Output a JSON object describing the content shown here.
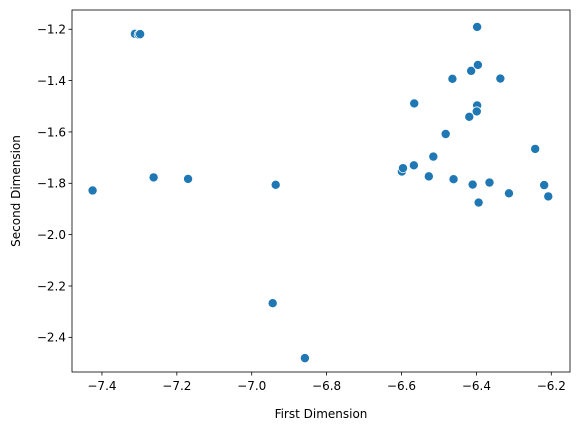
{
  "chart_data": {
    "type": "scatter",
    "title": "",
    "xlabel": "First Dimension",
    "ylabel": "Second Dimension",
    "xlim": [
      -7.48,
      -6.15
    ],
    "ylim": [
      -2.535,
      -1.125
    ],
    "xticks": [
      -7.4,
      -7.2,
      -7.0,
      -6.8,
      -6.6,
      -6.4,
      -6.2
    ],
    "xtick_labels": [
      "−7.4",
      "−7.2",
      "−7.0",
      "−6.8",
      "−6.6",
      "−6.4",
      "−6.2"
    ],
    "yticks": [
      -1.2,
      -1.4,
      -1.6,
      -1.8,
      -2.0,
      -2.2,
      -2.4
    ],
    "ytick_labels": [
      "−1.2",
      "−1.4",
      "−1.6",
      "−1.8",
      "−2.0",
      "−2.2",
      "−2.4"
    ],
    "grid": false,
    "legend": "none",
    "color": "#1f77b4",
    "series": [
      {
        "points": [
          {
            "x": -7.425,
            "y": -1.828
          },
          {
            "x": -7.312,
            "y": -1.218
          },
          {
            "x": -7.302,
            "y": -1.221
          },
          {
            "x": -7.298,
            "y": -1.219
          },
          {
            "x": -7.262,
            "y": -1.777
          },
          {
            "x": -7.17,
            "y": -1.783
          },
          {
            "x": -6.936,
            "y": -1.806
          },
          {
            "x": -6.944,
            "y": -2.267
          },
          {
            "x": -6.858,
            "y": -2.481
          },
          {
            "x": -6.599,
            "y": -1.754
          },
          {
            "x": -6.596,
            "y": -1.741
          },
          {
            "x": -6.567,
            "y": -1.73
          },
          {
            "x": -6.566,
            "y": -1.489
          },
          {
            "x": -6.527,
            "y": -1.773
          },
          {
            "x": -6.515,
            "y": -1.696
          },
          {
            "x": -6.482,
            "y": -1.608
          },
          {
            "x": -6.464,
            "y": -1.393
          },
          {
            "x": -6.461,
            "y": -1.784
          },
          {
            "x": -6.419,
            "y": -1.541
          },
          {
            "x": -6.414,
            "y": -1.362
          },
          {
            "x": -6.41,
            "y": -1.805
          },
          {
            "x": -6.398,
            "y": -1.191
          },
          {
            "x": -6.396,
            "y": -1.339
          },
          {
            "x": -6.398,
            "y": -1.497
          },
          {
            "x": -6.399,
            "y": -1.52
          },
          {
            "x": -6.394,
            "y": -1.875
          },
          {
            "x": -6.365,
            "y": -1.797
          },
          {
            "x": -6.336,
            "y": -1.392
          },
          {
            "x": -6.313,
            "y": -1.839
          },
          {
            "x": -6.243,
            "y": -1.666
          },
          {
            "x": -6.219,
            "y": -1.807
          },
          {
            "x": -6.208,
            "y": -1.851
          }
        ]
      }
    ]
  }
}
